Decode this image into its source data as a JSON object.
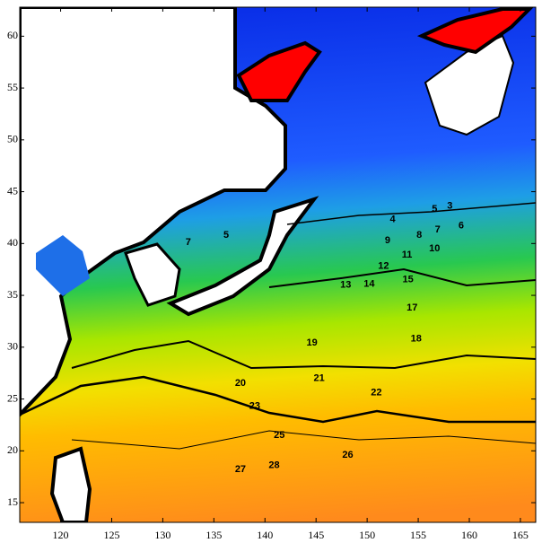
{
  "chart_data": {
    "type": "contour",
    "xlim": [
      116,
      166.5
    ],
    "ylim": [
      13.1,
      62.8
    ],
    "xticks": [
      120,
      125,
      130,
      135,
      140,
      145,
      150,
      155,
      160,
      165
    ],
    "yticks": [
      15,
      20,
      25,
      30,
      35,
      40,
      45,
      50,
      55,
      60
    ],
    "contour_labels": [
      {
        "value": 20,
        "x": 137.6,
        "y": 26.5
      },
      {
        "value": 21,
        "x": 145.3,
        "y": 27.0
      },
      {
        "value": 22,
        "x": 150.9,
        "y": 25.6
      },
      {
        "value": 23,
        "x": 139.0,
        "y": 24.3
      },
      {
        "value": 25,
        "x": 141.4,
        "y": 21.5
      },
      {
        "value": 26,
        "x": 148.1,
        "y": 19.6
      },
      {
        "value": 27,
        "x": 137.6,
        "y": 18.2
      },
      {
        "value": 28,
        "x": 140.9,
        "y": 18.6
      },
      {
        "value": 19,
        "x": 144.6,
        "y": 30.4
      },
      {
        "value": 18,
        "x": 154.8,
        "y": 30.8
      },
      {
        "value": 17,
        "x": 154.4,
        "y": 33.8
      },
      {
        "value": 15,
        "x": 154.0,
        "y": 36.5
      },
      {
        "value": 14,
        "x": 150.2,
        "y": 36.1
      },
      {
        "value": 13,
        "x": 147.9,
        "y": 36.0
      },
      {
        "value": 12,
        "x": 151.6,
        "y": 37.8
      },
      {
        "value": 11,
        "x": 153.9,
        "y": 38.9
      },
      {
        "value": 10,
        "x": 156.6,
        "y": 39.5
      },
      {
        "value": 9,
        "x": 152.0,
        "y": 40.3
      },
      {
        "value": 8,
        "x": 155.1,
        "y": 40.8
      },
      {
        "value": 7,
        "x": 156.9,
        "y": 41.3
      },
      {
        "value": 6,
        "x": 159.2,
        "y": 41.7
      },
      {
        "value": 5,
        "x": 156.6,
        "y": 43.3
      },
      {
        "value": 4,
        "x": 152.5,
        "y": 42.3
      },
      {
        "value": 3,
        "x": 158.1,
        "y": 43.6
      },
      {
        "value": 7,
        "x": 132.5,
        "y": 40.1
      },
      {
        "value": 5,
        "x": 136.2,
        "y": 40.8
      }
    ]
  }
}
